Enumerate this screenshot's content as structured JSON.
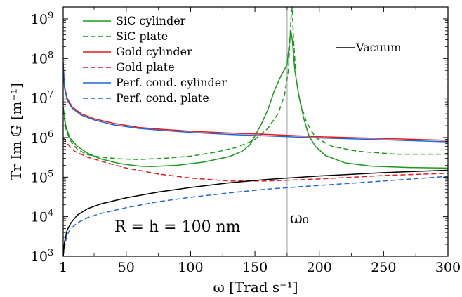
{
  "chart_data": {
    "type": "line",
    "title": "",
    "xlabel": "ω [Trad s⁻¹]",
    "ylabel": "Tr Im 𝔾 [m⁻¹]",
    "xlim": [
      1,
      300
    ],
    "ylim": [
      1000,
      2000000000
    ],
    "y_scale": "log",
    "grid": false,
    "legend_placement": "top-left",
    "x_ticks": [
      {
        "value": 1,
        "label": "1"
      },
      {
        "value": 50,
        "label": "50"
      },
      {
        "value": 100,
        "label": "100"
      },
      {
        "value": 150,
        "label": "150"
      },
      {
        "value": 200,
        "label": "200"
      },
      {
        "value": 250,
        "label": "250"
      },
      {
        "value": 300,
        "label": "300"
      }
    ],
    "y_ticks": [
      {
        "value": 1000,
        "base": "10",
        "exp": "3"
      },
      {
        "value": 10000,
        "base": "10",
        "exp": "4"
      },
      {
        "value": 100000,
        "base": "10",
        "exp": "5"
      },
      {
        "value": 1000000,
        "base": "10",
        "exp": "6"
      },
      {
        "value": 10000000,
        "base": "10",
        "exp": "7"
      },
      {
        "value": 100000000,
        "base": "10",
        "exp": "8"
      },
      {
        "value": 1000000000,
        "base": "10",
        "exp": "9"
      }
    ],
    "annotations": {
      "omega0_label": "ω₀",
      "omega0_x": 175,
      "geometry_label": "R = h = 100 nm"
    },
    "series": [
      {
        "name": "SiC cylinder",
        "color": "#1a9a1a",
        "dash": "solid",
        "points": [
          [
            1,
            6000000
          ],
          [
            3,
            2000000
          ],
          [
            6,
            1000000
          ],
          [
            12,
            600000
          ],
          [
            20,
            400000
          ],
          [
            30,
            290000
          ],
          [
            45,
            220000
          ],
          [
            60,
            190000
          ],
          [
            70,
            185000
          ],
          [
            90,
            200000
          ],
          [
            110,
            240000
          ],
          [
            130,
            330000
          ],
          [
            140,
            450000
          ],
          [
            146,
            650000
          ],
          [
            150,
            1100000
          ],
          [
            155,
            2200000
          ],
          [
            160,
            5000000
          ],
          [
            165,
            15000000
          ],
          [
            170,
            35000000
          ],
          [
            175,
            70000000
          ],
          [
            177,
            300000000
          ],
          [
            178,
            500000000
          ],
          [
            179,
            300000000
          ],
          [
            181,
            50000000
          ],
          [
            184,
            12000000
          ],
          [
            188,
            3000000
          ],
          [
            192,
            1100000
          ],
          [
            197,
            600000
          ],
          [
            205,
            350000
          ],
          [
            220,
            230000
          ],
          [
            240,
            190000
          ],
          [
            270,
            175000
          ],
          [
            300,
            170000
          ]
        ]
      },
      {
        "name": "SiC plate",
        "color": "#1a9a1a",
        "dash": "7,4",
        "points": [
          [
            1,
            5000000
          ],
          [
            3,
            1700000
          ],
          [
            6,
            900000
          ],
          [
            12,
            500000
          ],
          [
            20,
            370000
          ],
          [
            30,
            320000
          ],
          [
            45,
            290000
          ],
          [
            60,
            280000
          ],
          [
            80,
            300000
          ],
          [
            100,
            340000
          ],
          [
            120,
            430000
          ],
          [
            135,
            560000
          ],
          [
            145,
            750000
          ],
          [
            150,
            900000
          ],
          [
            160,
            1700000
          ],
          [
            168,
            4000000
          ],
          [
            173,
            12000000
          ],
          [
            176,
            50000000
          ],
          [
            178,
            1000000000
          ],
          [
            179,
            2000000000
          ],
          [
            180,
            300000000
          ],
          [
            182,
            30000000
          ],
          [
            185,
            8000000
          ],
          [
            190,
            2500000
          ],
          [
            197,
            1000000
          ],
          [
            210,
            600000
          ],
          [
            230,
            450000
          ],
          [
            260,
            380000
          ],
          [
            300,
            380000
          ]
        ]
      },
      {
        "name": "Gold cylinder",
        "color": "#e41a1c",
        "dash": "solid",
        "points": [
          [
            1,
            80000000
          ],
          [
            2,
            20000000
          ],
          [
            4,
            10000000
          ],
          [
            8,
            6000000
          ],
          [
            15,
            4000000
          ],
          [
            25,
            3000000
          ],
          [
            40,
            2300000
          ],
          [
            60,
            1800000
          ],
          [
            80,
            1600000
          ],
          [
            100,
            1450000
          ],
          [
            130,
            1300000
          ],
          [
            160,
            1200000
          ],
          [
            200,
            1050000
          ],
          [
            250,
            950000
          ],
          [
            300,
            850000
          ]
        ]
      },
      {
        "name": "Gold plate",
        "color": "#e41a1c",
        "dash": "7,4",
        "points": [
          [
            1,
            1000000
          ],
          [
            3,
            800000
          ],
          [
            6,
            600000
          ],
          [
            10,
            450000
          ],
          [
            20,
            320000
          ],
          [
            35,
            230000
          ],
          [
            50,
            170000
          ],
          [
            75,
            120000
          ],
          [
            100,
            95000
          ],
          [
            130,
            80000
          ],
          [
            160,
            80000
          ],
          [
            200,
            90000
          ],
          [
            250,
            110000
          ],
          [
            300,
            125000
          ]
        ]
      },
      {
        "name": "Perf. cond. cylinder",
        "color": "#2166d6",
        "dash": "solid",
        "points": [
          [
            1,
            70000000
          ],
          [
            2,
            18000000
          ],
          [
            4,
            9000000
          ],
          [
            8,
            5500000
          ],
          [
            15,
            3700000
          ],
          [
            25,
            2800000
          ],
          [
            40,
            2100000
          ],
          [
            60,
            1700000
          ],
          [
            80,
            1500000
          ],
          [
            100,
            1350000
          ],
          [
            130,
            1200000
          ],
          [
            160,
            1100000
          ],
          [
            200,
            980000
          ],
          [
            250,
            880000
          ],
          [
            300,
            780000
          ]
        ]
      },
      {
        "name": "Perf. cond. plate",
        "color": "#2166d6",
        "dash": "7,4",
        "points": [
          [
            1,
            1000
          ],
          [
            2,
            1800
          ],
          [
            4,
            3500
          ],
          [
            7,
            5000
          ],
          [
            12,
            7000
          ],
          [
            20,
            9500
          ],
          [
            30,
            12000
          ],
          [
            50,
            17000
          ],
          [
            75,
            24000
          ],
          [
            100,
            31000
          ],
          [
            130,
            40000
          ],
          [
            160,
            50000
          ],
          [
            200,
            62000
          ],
          [
            250,
            80000
          ],
          [
            300,
            105000
          ]
        ]
      },
      {
        "name": "Vacuum",
        "color": "#000000",
        "dash": "solid",
        "points": [
          [
            1,
            1000
          ],
          [
            2,
            2300
          ],
          [
            4,
            4500
          ],
          [
            7,
            7000
          ],
          [
            12,
            11000
          ],
          [
            20,
            16000
          ],
          [
            30,
            21000
          ],
          [
            50,
            30000
          ],
          [
            75,
            42000
          ],
          [
            100,
            55000
          ],
          [
            130,
            72000
          ],
          [
            160,
            88000
          ],
          [
            200,
            107000
          ],
          [
            250,
            130000
          ],
          [
            300,
            150000
          ]
        ]
      }
    ],
    "legend_left": [
      "SiC cylinder",
      "SiC plate",
      "Gold cylinder",
      "Gold plate",
      "Perf. cond. cylinder",
      "Perf. cond. plate"
    ],
    "legend_right": [
      "Vacuum"
    ]
  }
}
